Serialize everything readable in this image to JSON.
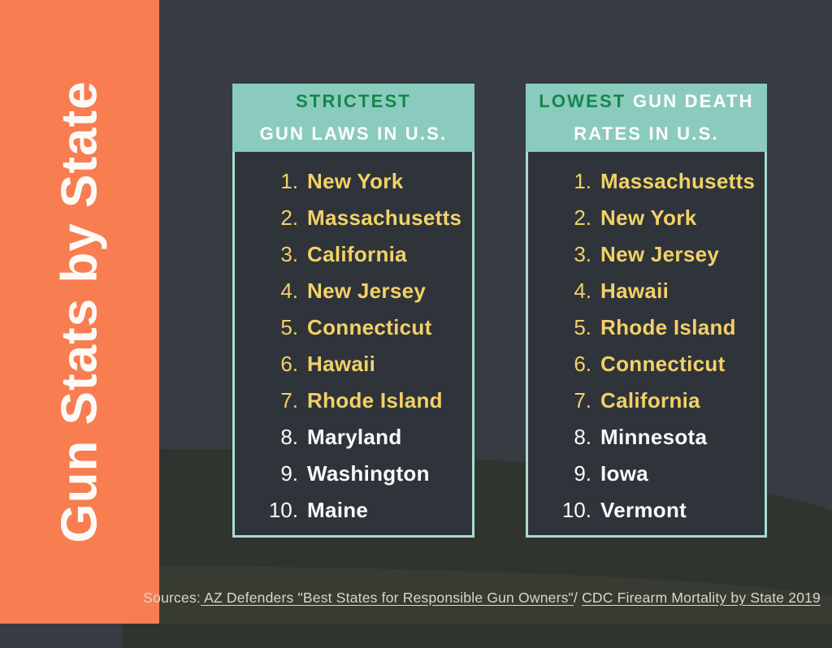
{
  "title": {
    "text": "Gun Stats by State"
  },
  "colors": {
    "sidebar_orange": "#F87D51",
    "background_dark": "#373B42",
    "wave_dark": "#30342E",
    "wave_olive": "#383B31",
    "header_teal": "#8BCBBD",
    "panel_border_teal": "#A9DBCE",
    "panel_body_dark": "#2F343B",
    "accent_green": "#13864B",
    "rank_yellow": "#F2D166",
    "rank_white": "#FAFAF8",
    "footer_gray": "#D9D6CE"
  },
  "panels": [
    {
      "header": {
        "accent": "STRICTEST",
        "rest": "",
        "line2": "GUN LAWS IN U.S."
      },
      "items": [
        {
          "num": "1.",
          "name": "New York",
          "tone": "yellow"
        },
        {
          "num": "2.",
          "name": "Massachusetts",
          "tone": "yellow"
        },
        {
          "num": "3.",
          "name": "California",
          "tone": "yellow"
        },
        {
          "num": "4.",
          "name": "New Jersey",
          "tone": "yellow"
        },
        {
          "num": "5.",
          "name": "Connecticut",
          "tone": "yellow"
        },
        {
          "num": "6.",
          "name": "Hawaii",
          "tone": "yellow"
        },
        {
          "num": "7.",
          "name": "Rhode Island",
          "tone": "yellow"
        },
        {
          "num": "8.",
          "name": "Maryland",
          "tone": "white"
        },
        {
          "num": "9.",
          "name": "Washington",
          "tone": "white"
        },
        {
          "num": "10.",
          "name": "Maine",
          "tone": "white"
        }
      ]
    },
    {
      "header": {
        "accent": "LOWEST",
        "rest": " GUN DEATH",
        "line2": "RATES IN U.S."
      },
      "items": [
        {
          "num": "1.",
          "name": "Massachusetts",
          "tone": "yellow"
        },
        {
          "num": "2.",
          "name": "New York",
          "tone": "yellow"
        },
        {
          "num": "3.",
          "name": "New Jersey",
          "tone": "yellow"
        },
        {
          "num": "4.",
          "name": "Hawaii",
          "tone": "yellow"
        },
        {
          "num": "5.",
          "name": "Rhode Island",
          "tone": "yellow"
        },
        {
          "num": "6.",
          "name": "Connecticut",
          "tone": "yellow"
        },
        {
          "num": "7.",
          "name": "California",
          "tone": "yellow"
        },
        {
          "num": "8.",
          "name": "Minnesota",
          "tone": "white"
        },
        {
          "num": "9.",
          "name": "Iowa",
          "tone": "white"
        },
        {
          "num": "10.",
          "name": "Vermont",
          "tone": "white"
        }
      ]
    }
  ],
  "footer": {
    "label": "Sources:",
    "link1": " AZ Defenders \"Best States for Responsible Gun Owners\"",
    "separator": "/ ",
    "link2": "CDC Firearm Mortality by State 2019"
  }
}
